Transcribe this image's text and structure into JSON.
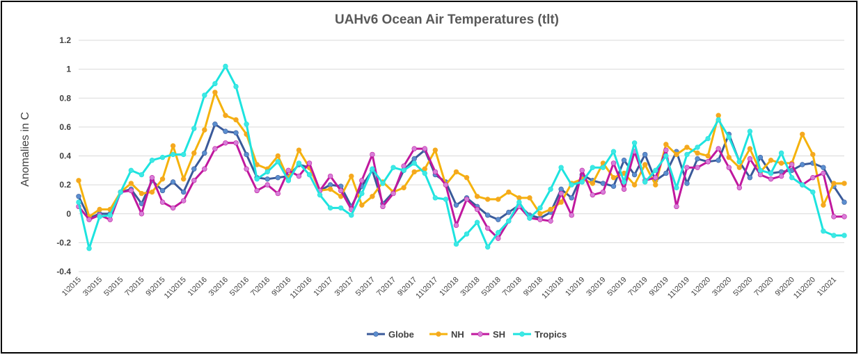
{
  "chart_data": {
    "type": "line",
    "title": "UAHv6 Ocean Air Temperatures (tlt)",
    "xlabel": "",
    "ylabel": "Anomalies in C",
    "ylim": [
      -0.4,
      1.2
    ],
    "yticks": [
      "-0.4",
      "-0.2",
      "0",
      "0.2",
      "0.4",
      "0.6",
      "0.8",
      "1",
      "1.2"
    ],
    "grid": "horizontal",
    "legend": "bottom",
    "x": [
      "1\\2015",
      "2\\2015",
      "3\\2015",
      "4\\2015",
      "5\\2015",
      "6\\2015",
      "7\\2015",
      "8\\2015",
      "9\\2015",
      "10\\2015",
      "11\\2015",
      "12\\2015",
      "1\\2016",
      "2\\2016",
      "3\\2016",
      "4\\2016",
      "5\\2016",
      "6\\2016",
      "7\\2016",
      "8\\2016",
      "9\\2016",
      "10\\2016",
      "11\\2016",
      "12\\2016",
      "1\\2017",
      "2\\2017",
      "3\\2017",
      "4\\2017",
      "5\\2017",
      "6\\2017",
      "7\\2017",
      "8\\2017",
      "9\\2017",
      "10\\2017",
      "11\\2017",
      "12\\2017",
      "1\\2018",
      "2\\2018",
      "3\\2018",
      "4\\2018",
      "5\\2018",
      "6\\2018",
      "7\\2018",
      "8\\2018",
      "9\\2018",
      "10\\2018",
      "11\\2018",
      "12\\2018",
      "1\\2019",
      "2\\2019",
      "3\\2019",
      "4\\2019",
      "5\\2019",
      "6\\2019",
      "7\\2019",
      "8\\2019",
      "9\\2019",
      "10\\2019",
      "11\\2019",
      "12\\2019",
      "1\\2020",
      "2\\2020",
      "3\\2020",
      "4\\2020",
      "5\\2020",
      "6\\2020",
      "7\\2020",
      "8\\2020",
      "9\\2020",
      "10\\2020",
      "11\\2020",
      "12\\2020",
      "1\\2021",
      "2\\2021"
    ],
    "xtick_labels": [
      "1\\2015",
      "3\\2015",
      "5\\2015",
      "7\\2015",
      "9\\2015",
      "11\\2015",
      "1\\2016",
      "3\\2016",
      "5\\2016",
      "7\\2016",
      "9\\2016",
      "11\\2016",
      "1\\2017",
      "3\\2017",
      "5\\2017",
      "7\\2017",
      "9\\2017",
      "11\\2017",
      "1\\2018",
      "3\\2018",
      "5\\2018",
      "7\\2018",
      "9\\2018",
      "11\\2018",
      "1\\2019",
      "3\\2019",
      "5\\2019",
      "7\\2019",
      "9\\2019",
      "11\\2019",
      "1\\2020",
      "3\\2020",
      "5\\2020",
      "7\\2020",
      "9\\2020",
      "11\\2020",
      "1\\2021"
    ],
    "series": [
      {
        "name": "Globe",
        "color": "#3a5a9a",
        "marker": "#5b8ecf",
        "values": [
          0.12,
          -0.03,
          0.0,
          0.0,
          0.15,
          0.17,
          0.07,
          0.23,
          0.16,
          0.22,
          0.15,
          0.31,
          0.42,
          0.62,
          0.57,
          0.56,
          0.41,
          0.25,
          0.24,
          0.25,
          0.26,
          0.34,
          0.32,
          0.16,
          0.2,
          0.19,
          0.05,
          0.19,
          0.3,
          0.07,
          0.15,
          0.3,
          0.38,
          0.44,
          0.27,
          0.22,
          0.06,
          0.11,
          0.05,
          -0.01,
          -0.04,
          0.01,
          0.06,
          -0.01,
          -0.03,
          0.01,
          0.17,
          0.11,
          0.27,
          0.23,
          0.21,
          0.19,
          0.37,
          0.27,
          0.41,
          0.23,
          0.28,
          0.43,
          0.21,
          0.38,
          0.36,
          0.37,
          0.55,
          0.36,
          0.25,
          0.39,
          0.28,
          0.29,
          0.3,
          0.34,
          0.35,
          0.32,
          0.19,
          0.08
        ]
      },
      {
        "name": "NH",
        "color": "#f5b20c",
        "marker": "#f5a623",
        "values": [
          0.23,
          -0.02,
          0.03,
          0.03,
          0.15,
          0.21,
          0.14,
          0.15,
          0.24,
          0.47,
          0.24,
          0.42,
          0.58,
          0.84,
          0.68,
          0.65,
          0.55,
          0.34,
          0.31,
          0.4,
          0.24,
          0.44,
          0.32,
          0.16,
          0.17,
          0.12,
          0.26,
          0.06,
          0.12,
          0.22,
          0.15,
          0.18,
          0.29,
          0.31,
          0.44,
          0.2,
          0.29,
          0.25,
          0.12,
          0.1,
          0.1,
          0.15,
          0.11,
          0.11,
          0.0,
          0.03,
          0.08,
          0.21,
          0.24,
          0.21,
          0.35,
          0.25,
          0.28,
          0.2,
          0.34,
          0.2,
          0.48,
          0.41,
          0.46,
          0.42,
          0.4,
          0.68,
          0.39,
          0.32,
          0.45,
          0.29,
          0.37,
          0.35,
          0.35,
          0.55,
          0.41,
          0.06,
          0.21,
          0.21
        ]
      },
      {
        "name": "SH",
        "color": "#c0189e",
        "marker": "#d77ed8",
        "values": [
          0.05,
          -0.04,
          -0.01,
          -0.04,
          0.15,
          0.16,
          0.0,
          0.25,
          0.08,
          0.04,
          0.09,
          0.23,
          0.31,
          0.45,
          0.49,
          0.49,
          0.31,
          0.16,
          0.2,
          0.14,
          0.3,
          0.26,
          0.35,
          0.16,
          0.26,
          0.16,
          0.03,
          0.23,
          0.41,
          0.05,
          0.14,
          0.33,
          0.45,
          0.45,
          0.29,
          0.2,
          -0.08,
          0.1,
          0.03,
          -0.1,
          -0.17,
          -0.05,
          0.05,
          -0.03,
          -0.04,
          -0.05,
          0.14,
          -0.01,
          0.3,
          0.13,
          0.15,
          0.35,
          0.17,
          0.43,
          0.23,
          0.25,
          0.44,
          0.05,
          0.32,
          0.32,
          0.36,
          0.45,
          0.32,
          0.18,
          0.38,
          0.27,
          0.24,
          0.26,
          0.34,
          0.2,
          0.25,
          0.28,
          -0.02,
          -0.02
        ]
      },
      {
        "name": "Tropics",
        "color": "#1de3df",
        "marker": "#3ee8e4",
        "values": [
          0.08,
          -0.24,
          -0.02,
          -0.01,
          0.15,
          0.3,
          0.27,
          0.37,
          0.39,
          0.41,
          0.41,
          0.59,
          0.82,
          0.9,
          1.02,
          0.88,
          0.62,
          0.24,
          0.29,
          0.36,
          0.23,
          0.35,
          0.27,
          0.13,
          0.04,
          0.04,
          -0.01,
          0.14,
          0.31,
          0.21,
          0.32,
          0.3,
          0.35,
          0.28,
          0.11,
          0.1,
          -0.21,
          -0.14,
          -0.06,
          -0.23,
          -0.13,
          -0.05,
          0.08,
          -0.03,
          0.04,
          0.17,
          0.32,
          0.2,
          0.22,
          0.32,
          0.32,
          0.43,
          0.22,
          0.49,
          0.22,
          0.3,
          0.4,
          0.18,
          0.41,
          0.46,
          0.52,
          0.65,
          0.53,
          0.36,
          0.57,
          0.3,
          0.28,
          0.42,
          0.25,
          0.2,
          0.15,
          -0.12,
          -0.15,
          -0.15
        ]
      }
    ]
  }
}
